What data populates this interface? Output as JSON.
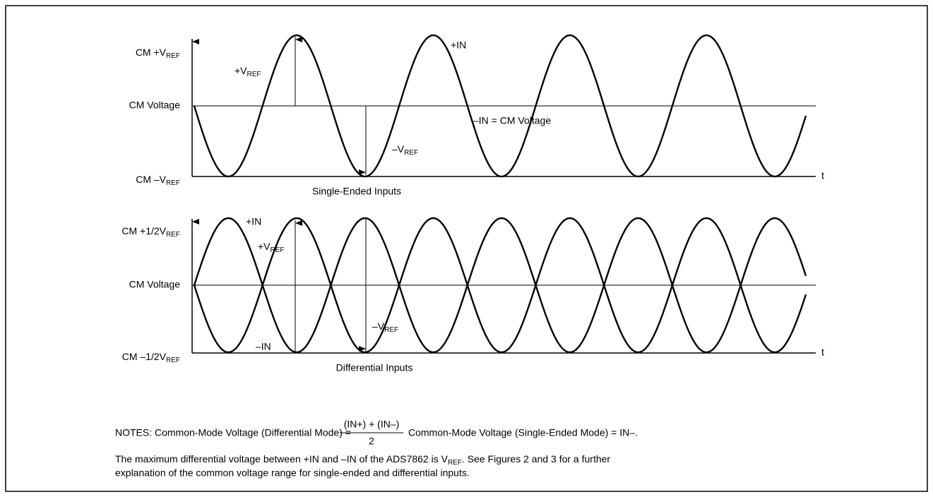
{
  "top": {
    "y_high": {
      "main": "CM +V",
      "sub": "REF"
    },
    "y_mid": "CM Voltage",
    "y_low": {
      "main": "CM –V",
      "sub": "REF"
    },
    "plus_vref": {
      "main": "+V",
      "sub": "REF"
    },
    "plus_in": "+IN",
    "minus_in": "–IN = CM Voltage",
    "minus_vref": {
      "main": "–V",
      "sub": "REF"
    },
    "t": "t",
    "caption": "Single-Ended Inputs"
  },
  "bottom": {
    "y_high": {
      "main": "CM +1/2V",
      "sub": "REF"
    },
    "y_mid": "CM Voltage",
    "y_low": {
      "main": "CM –1/2V",
      "sub": "REF"
    },
    "plus_in": "+IN",
    "plus_vref": {
      "main": "+V",
      "sub": "REF"
    },
    "minus_vref": {
      "main": "–V",
      "sub": "REF"
    },
    "minus_in": "–IN",
    "t": "t",
    "caption": "Differential Inputs"
  },
  "notes": {
    "lead": "NOTES: Common-Mode Voltage (Differential Mode) =",
    "numerator": "(IN+) + (IN–)",
    "denominator": "2",
    "tail": "Common-Mode Voltage (Single-Ended Mode) = IN–.",
    "line1": {
      "pre": "The maximum differential voltage between +IN and –IN of the ADS7862 is V",
      "sub": "REF",
      "post": ". See Figures 2 and 3 for a further"
    },
    "line2": "explanation of the common voltage range for single-ended and differential inputs."
  }
}
